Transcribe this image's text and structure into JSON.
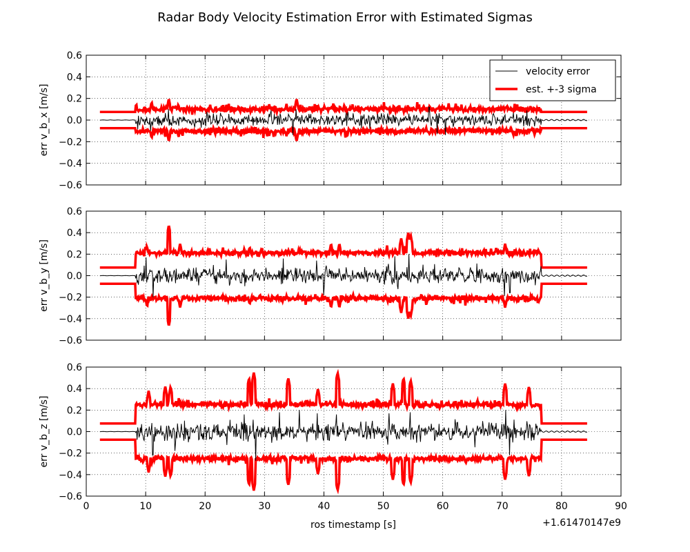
{
  "chart_data": {
    "type": "line",
    "title": "Radar Body Velocity Estimation Error with Estimated Sigmas",
    "xlabel": "ros timestamp [s]",
    "x_offset_label": "+1.61470147e9",
    "xlim": [
      0,
      90
    ],
    "xticks": [
      "0",
      "10",
      "20",
      "30",
      "40",
      "50",
      "60",
      "70",
      "80",
      "90"
    ],
    "grid": true,
    "legend": {
      "placement": "top-right of first subplot",
      "entries": [
        "velocity error",
        "est. +-3 sigma"
      ]
    },
    "colors": {
      "error": "#000000",
      "sigma": "#ff0000"
    },
    "ylim": [
      -0.6,
      0.6
    ],
    "yticks": [
      "0.6",
      "0.4",
      "0.2",
      "0.0",
      "−0.2",
      "−0.4",
      "−0.6"
    ],
    "x_range_data": [
      2.3,
      84.3
    ],
    "estimation_window": [
      8.3,
      76.6
    ],
    "subplots": [
      {
        "ylabel": "err v_b_x [m/s]",
        "sigma_initial": 0.075,
        "sigma_window_typical": 0.1,
        "sigma_peaks": [
          [
            9.8,
            0.13
          ],
          [
            11.0,
            0.17
          ],
          [
            13.9,
            0.2
          ],
          [
            15.5,
            0.15
          ],
          [
            30.8,
            0.15
          ],
          [
            33.7,
            0.15
          ],
          [
            35.4,
            0.2
          ],
          [
            48.0,
            0.12
          ],
          [
            57.8,
            0.14
          ],
          [
            68.4,
            0.13
          ]
        ],
        "error_amplitude": 0.05,
        "error_spikes": [
          [
            10.8,
            -0.1
          ],
          [
            13.8,
            0.1
          ],
          [
            31.1,
            0.09
          ],
          [
            34.8,
            -0.14
          ],
          [
            35.3,
            0.1
          ],
          [
            57.7,
            0.12
          ],
          [
            59.1,
            -0.13
          ],
          [
            60.5,
            -0.14
          ]
        ]
      },
      {
        "ylabel": "err v_b_y [m/s]",
        "sigma_initial": 0.075,
        "sigma_window_typical": 0.21,
        "sigma_peaks": [
          [
            10.2,
            0.28
          ],
          [
            13.9,
            0.47
          ],
          [
            15.8,
            0.3
          ],
          [
            27.5,
            0.27
          ],
          [
            41.2,
            0.3
          ],
          [
            42.6,
            0.3
          ],
          [
            53.0,
            0.35
          ],
          [
            54.2,
            0.4
          ],
          [
            54.6,
            0.38
          ],
          [
            70.5,
            0.3
          ]
        ],
        "error_amplitude": 0.07,
        "error_spikes": [
          [
            10.1,
            0.17
          ],
          [
            11.3,
            -0.2
          ],
          [
            23.6,
            0.15
          ],
          [
            33.2,
            0.16
          ],
          [
            38.8,
            0.14
          ],
          [
            40.0,
            -0.18
          ],
          [
            51.9,
            0.18
          ],
          [
            54.3,
            0.2
          ],
          [
            70.4,
            -0.19
          ],
          [
            71.3,
            -0.16
          ]
        ]
      },
      {
        "ylabel": "err v_b_z [m/s]",
        "sigma_initial": 0.075,
        "sigma_window_typical": 0.25,
        "sigma_peaks": [
          [
            10.5,
            0.38
          ],
          [
            13.3,
            0.42
          ],
          [
            14.2,
            0.42
          ],
          [
            27.4,
            0.5
          ],
          [
            28.2,
            0.55
          ],
          [
            34.0,
            0.5
          ],
          [
            39.0,
            0.4
          ],
          [
            42.3,
            0.55
          ],
          [
            51.6,
            0.45
          ],
          [
            53.4,
            0.5
          ],
          [
            54.6,
            0.48
          ],
          [
            70.5,
            0.45
          ],
          [
            74.5,
            0.42
          ]
        ],
        "error_amplitude": 0.08,
        "error_spikes": [
          [
            11.2,
            -0.22
          ],
          [
            14.9,
            -0.18
          ],
          [
            26.6,
            0.16
          ],
          [
            28.5,
            -0.27
          ],
          [
            32.5,
            0.18
          ],
          [
            35.9,
            0.2
          ],
          [
            38.9,
            0.17
          ],
          [
            42.1,
            0.16
          ],
          [
            51.0,
            0.17
          ],
          [
            54.5,
            0.18
          ],
          [
            70.6,
            0.2
          ],
          [
            71.2,
            -0.22
          ]
        ]
      }
    ]
  }
}
